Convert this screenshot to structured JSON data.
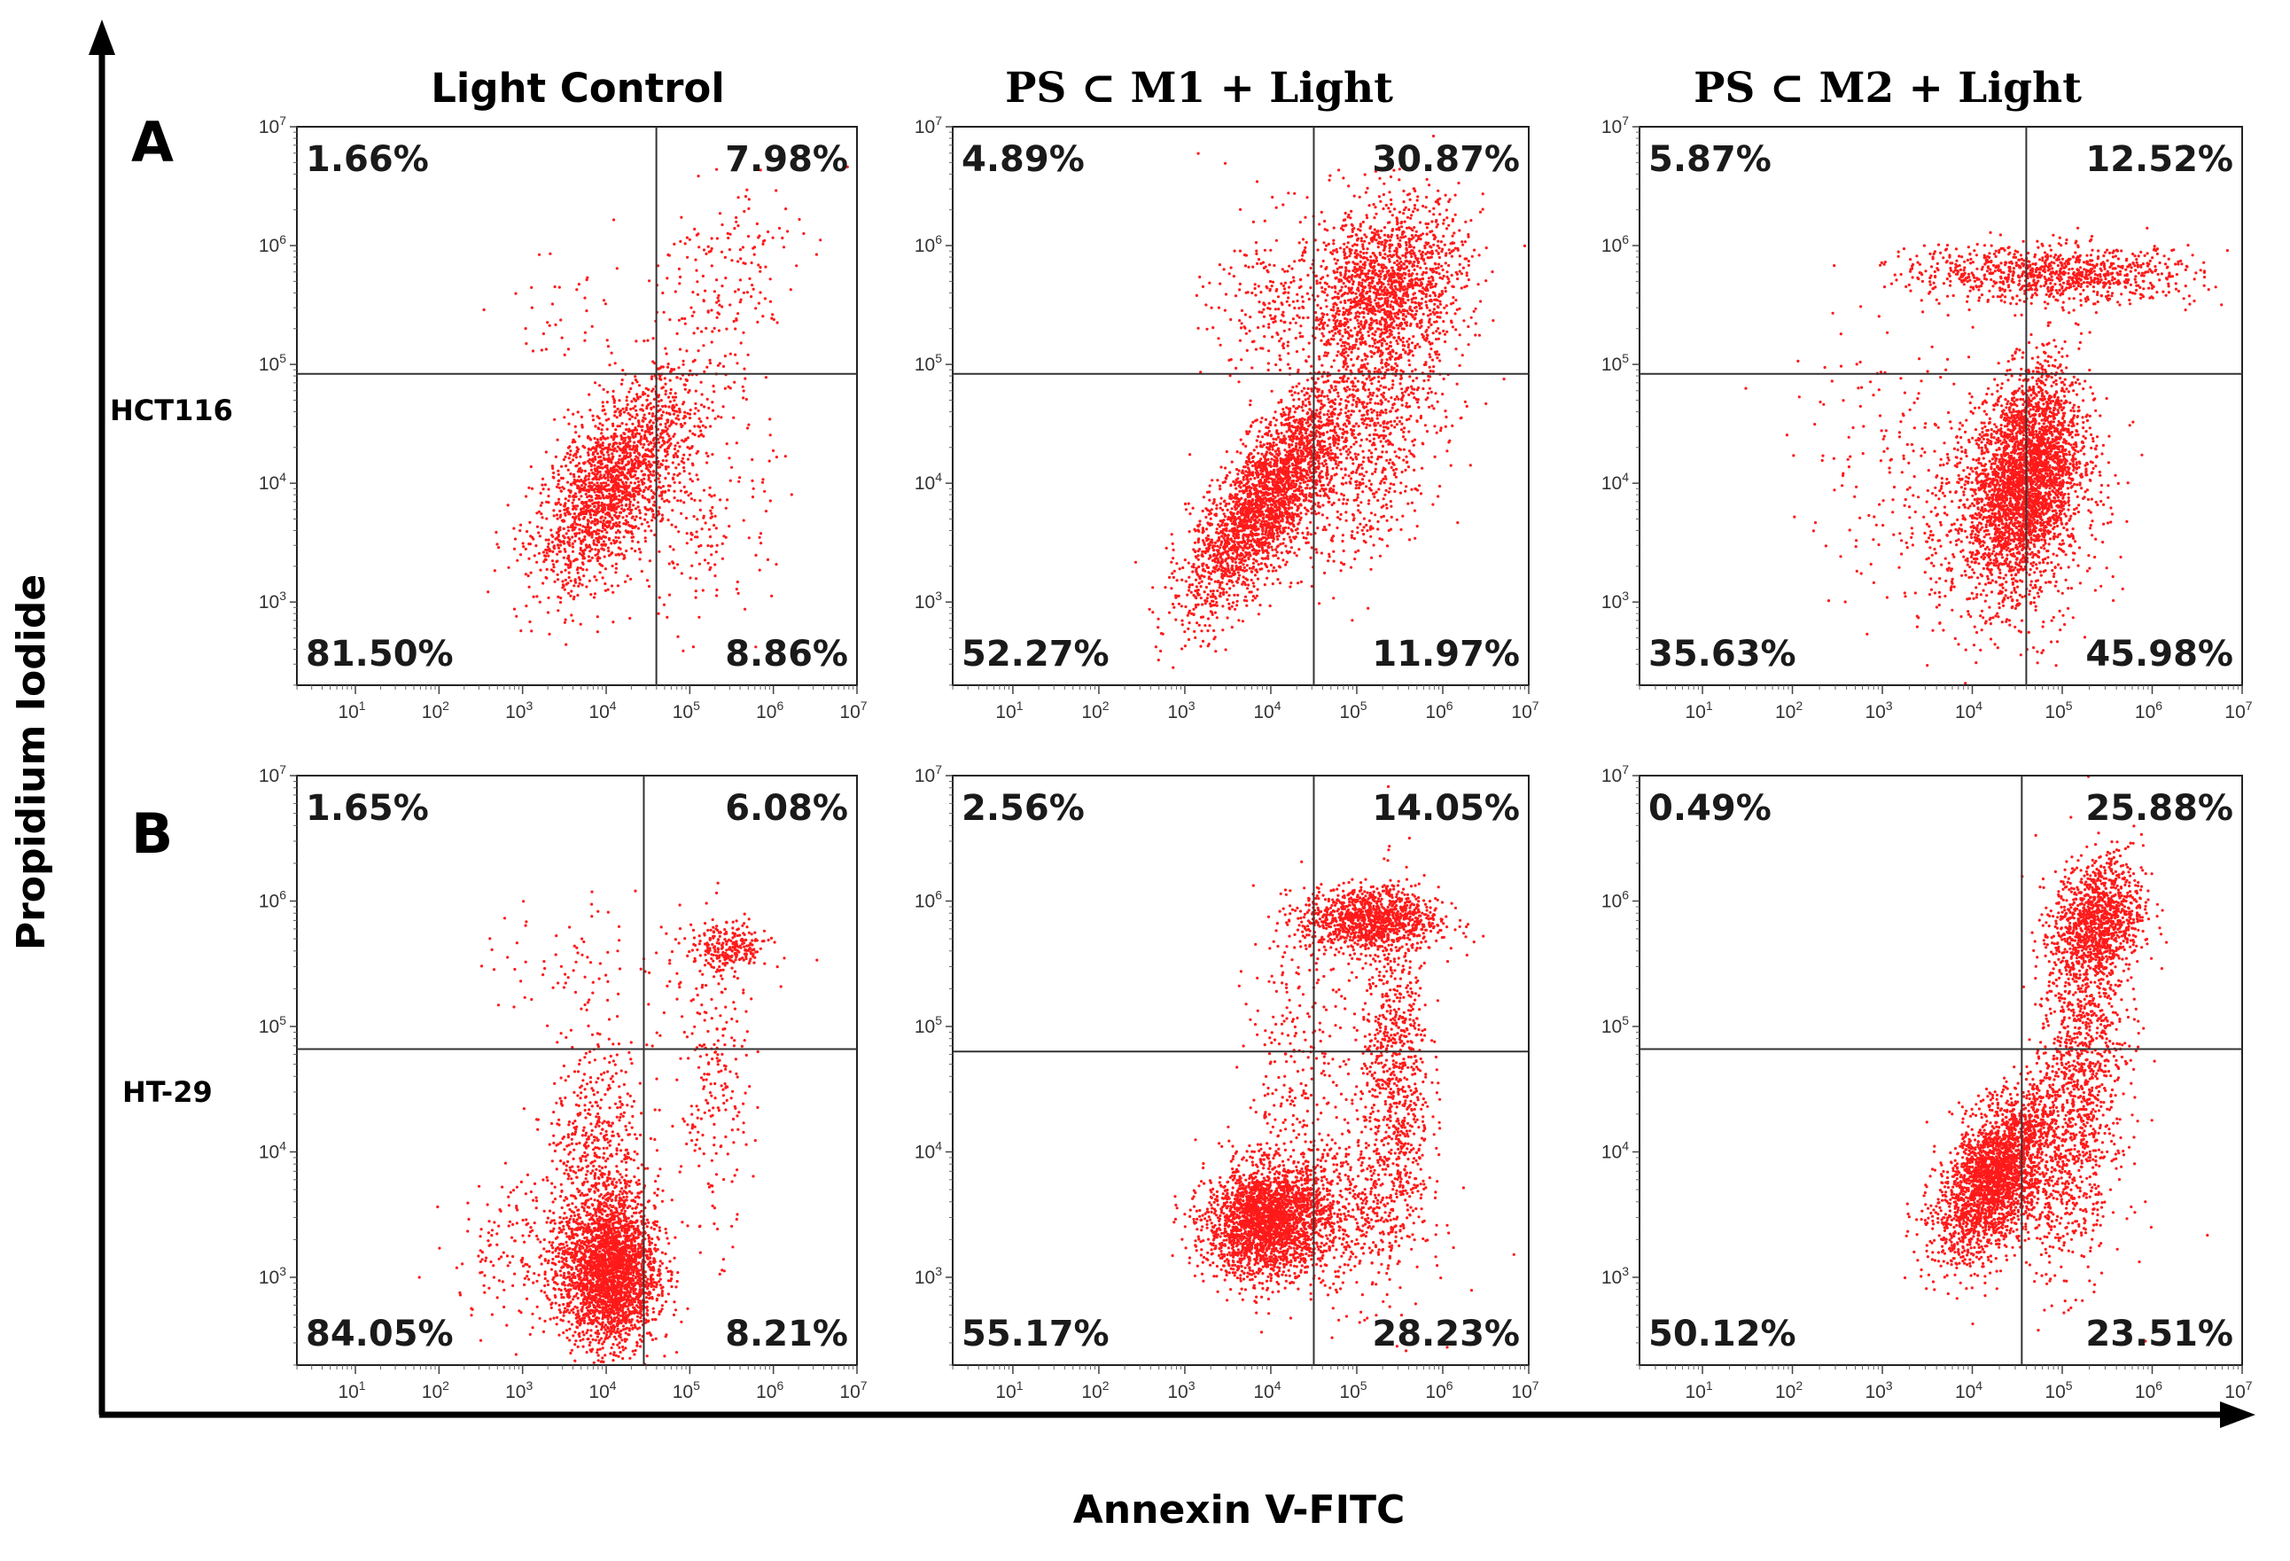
{
  "chart_data": {
    "type": "scatter",
    "description_axes": {
      "xlabel": "Annexin V-FITC",
      "ylabel": "Propidium Iodide"
    },
    "columns": [
      "Light Control",
      "PS ⊂ M1 + Light",
      "PS ⊂ M2 + Light"
    ],
    "rows": [
      {
        "letter": "A",
        "cell_line": "HCT116"
      },
      {
        "letter": "B",
        "cell_line": "HT-29"
      }
    ],
    "x_ticks": [
      "10^1",
      "10^2",
      "10^3",
      "10^4",
      "10^5",
      "10^6",
      "10^7"
    ],
    "y_ticks": [
      "10^3",
      "10^4",
      "10^5",
      "10^6",
      "10^7"
    ],
    "xlim_log10": [
      0.3,
      7
    ],
    "ylim_log10": [
      2.3,
      7
    ],
    "panels": [
      {
        "row": 0,
        "col": 0,
        "gate_x_log": 4.6,
        "gate_y_log": 4.92,
        "quadrants": {
          "UL": "1.66%",
          "UR": "7.98%",
          "LL": "81.50%",
          "LR": "8.86%"
        },
        "clusters": [
          {
            "cx": 4.05,
            "cy": 3.95,
            "sx": 0.45,
            "sy": 0.42,
            "rho": 0.6,
            "n": 1700
          },
          {
            "cx": 4.6,
            "cy": 4.4,
            "sx": 0.5,
            "sy": 0.4,
            "rho": 0.5,
            "n": 250
          },
          {
            "cx": 5.4,
            "cy": 5.7,
            "sx": 0.45,
            "sy": 0.45,
            "rho": 0.3,
            "n": 180
          },
          {
            "cx": 5.2,
            "cy": 3.6,
            "sx": 0.4,
            "sy": 0.4,
            "rho": 0.2,
            "n": 150
          },
          {
            "cx": 3.5,
            "cy": 5.4,
            "sx": 0.4,
            "sy": 0.3,
            "rho": 0.0,
            "n": 40
          }
        ]
      },
      {
        "row": 0,
        "col": 1,
        "gate_x_log": 4.5,
        "gate_y_log": 4.92,
        "quadrants": {
          "UL": "4.89%",
          "UR": "30.87%",
          "LL": "52.27%",
          "LR": "11.97%"
        },
        "clusters": [
          {
            "cx": 3.95,
            "cy": 3.85,
            "sx": 0.45,
            "sy": 0.45,
            "rho": 0.75,
            "n": 2600
          },
          {
            "cx": 5.35,
            "cy": 5.6,
            "sx": 0.45,
            "sy": 0.38,
            "rho": 0.2,
            "n": 1700
          },
          {
            "cx": 5.1,
            "cy": 4.3,
            "sx": 0.45,
            "sy": 0.5,
            "rho": 0.3,
            "n": 700
          },
          {
            "cx": 4.1,
            "cy": 5.5,
            "sx": 0.4,
            "sy": 0.4,
            "rho": 0.0,
            "n": 250
          }
        ]
      },
      {
        "row": 0,
        "col": 2,
        "gate_x_log": 4.6,
        "gate_y_log": 4.92,
        "quadrants": {
          "UL": "5.87%",
          "UR": "12.52%",
          "LL": "35.63%",
          "LR": "45.98%"
        },
        "clusters": [
          {
            "cx": 4.6,
            "cy": 4.05,
            "sx": 0.3,
            "sy": 0.45,
            "rho": 0.3,
            "n": 3000
          },
          {
            "cx": 4.3,
            "cy": 3.7,
            "sx": 0.6,
            "sy": 0.5,
            "rho": 0.1,
            "n": 600
          },
          {
            "cx": 5.1,
            "cy": 5.75,
            "sx": 0.7,
            "sy": 0.12,
            "rho": 0.0,
            "n": 800
          },
          {
            "cx": 4.0,
            "cy": 5.8,
            "sx": 0.5,
            "sy": 0.12,
            "rho": 0.0,
            "n": 150
          },
          {
            "cx": 3.0,
            "cy": 4.2,
            "sx": 0.5,
            "sy": 0.5,
            "rho": 0.0,
            "n": 120
          }
        ]
      },
      {
        "row": 1,
        "col": 0,
        "gate_x_log": 4.45,
        "gate_y_log": 4.82,
        "quadrants": {
          "UL": "1.65%",
          "UR": "6.08%",
          "LL": "84.05%",
          "LR": "8.21%"
        },
        "clusters": [
          {
            "cx": 4.05,
            "cy": 3.05,
            "sx": 0.28,
            "sy": 0.3,
            "rho": 0.0,
            "n": 2500
          },
          {
            "cx": 3.9,
            "cy": 3.9,
            "sx": 0.3,
            "sy": 0.5,
            "rho": 0.0,
            "n": 600
          },
          {
            "cx": 5.45,
            "cy": 5.62,
            "sx": 0.25,
            "sy": 0.1,
            "rho": 0.0,
            "n": 250
          },
          {
            "cx": 5.3,
            "cy": 4.5,
            "sx": 0.2,
            "sy": 0.6,
            "rho": 0.0,
            "n": 220
          },
          {
            "cx": 3.3,
            "cy": 3.2,
            "sx": 0.6,
            "sy": 0.3,
            "rho": 0.0,
            "n": 250
          },
          {
            "cx": 3.8,
            "cy": 5.5,
            "sx": 0.7,
            "sy": 0.3,
            "rho": 0.0,
            "n": 80
          }
        ]
      },
      {
        "row": 1,
        "col": 1,
        "gate_x_log": 4.5,
        "gate_y_log": 4.8,
        "quadrants": {
          "UL": "2.56%",
          "UR": "14.05%",
          "LL": "55.17%",
          "LR": "28.23%"
        },
        "clusters": [
          {
            "cx": 3.95,
            "cy": 3.45,
            "sx": 0.35,
            "sy": 0.22,
            "rho": 0.1,
            "n": 2400
          },
          {
            "cx": 5.15,
            "cy": 5.85,
            "sx": 0.4,
            "sy": 0.13,
            "rho": 0.0,
            "n": 1100
          },
          {
            "cx": 5.45,
            "cy": 4.6,
            "sx": 0.2,
            "sy": 0.7,
            "rho": 0.0,
            "n": 800
          },
          {
            "cx": 4.9,
            "cy": 3.5,
            "sx": 0.45,
            "sy": 0.35,
            "rho": 0.0,
            "n": 500
          },
          {
            "cx": 4.4,
            "cy": 4.6,
            "sx": 0.35,
            "sy": 0.6,
            "rho": 0.0,
            "n": 300
          }
        ]
      },
      {
        "row": 1,
        "col": 2,
        "gate_x_log": 4.55,
        "gate_y_log": 4.82,
        "quadrants": {
          "UL": "0.49%",
          "UR": "25.88%",
          "LL": "50.12%",
          "LR": "23.51%"
        },
        "clusters": [
          {
            "cx": 4.25,
            "cy": 3.8,
            "sx": 0.32,
            "sy": 0.32,
            "rho": 0.55,
            "n": 2400
          },
          {
            "cx": 5.4,
            "cy": 5.85,
            "sx": 0.25,
            "sy": 0.25,
            "rho": 0.2,
            "n": 1100
          },
          {
            "cx": 5.2,
            "cy": 4.7,
            "sx": 0.25,
            "sy": 0.65,
            "rho": 0.3,
            "n": 1000
          },
          {
            "cx": 4.9,
            "cy": 3.7,
            "sx": 0.4,
            "sy": 0.4,
            "rho": 0.0,
            "n": 400
          }
        ]
      }
    ],
    "colors": {
      "dot": "#ff1a1a",
      "frame": "#222222",
      "gate": "#333333",
      "axis": "#000000"
    }
  }
}
